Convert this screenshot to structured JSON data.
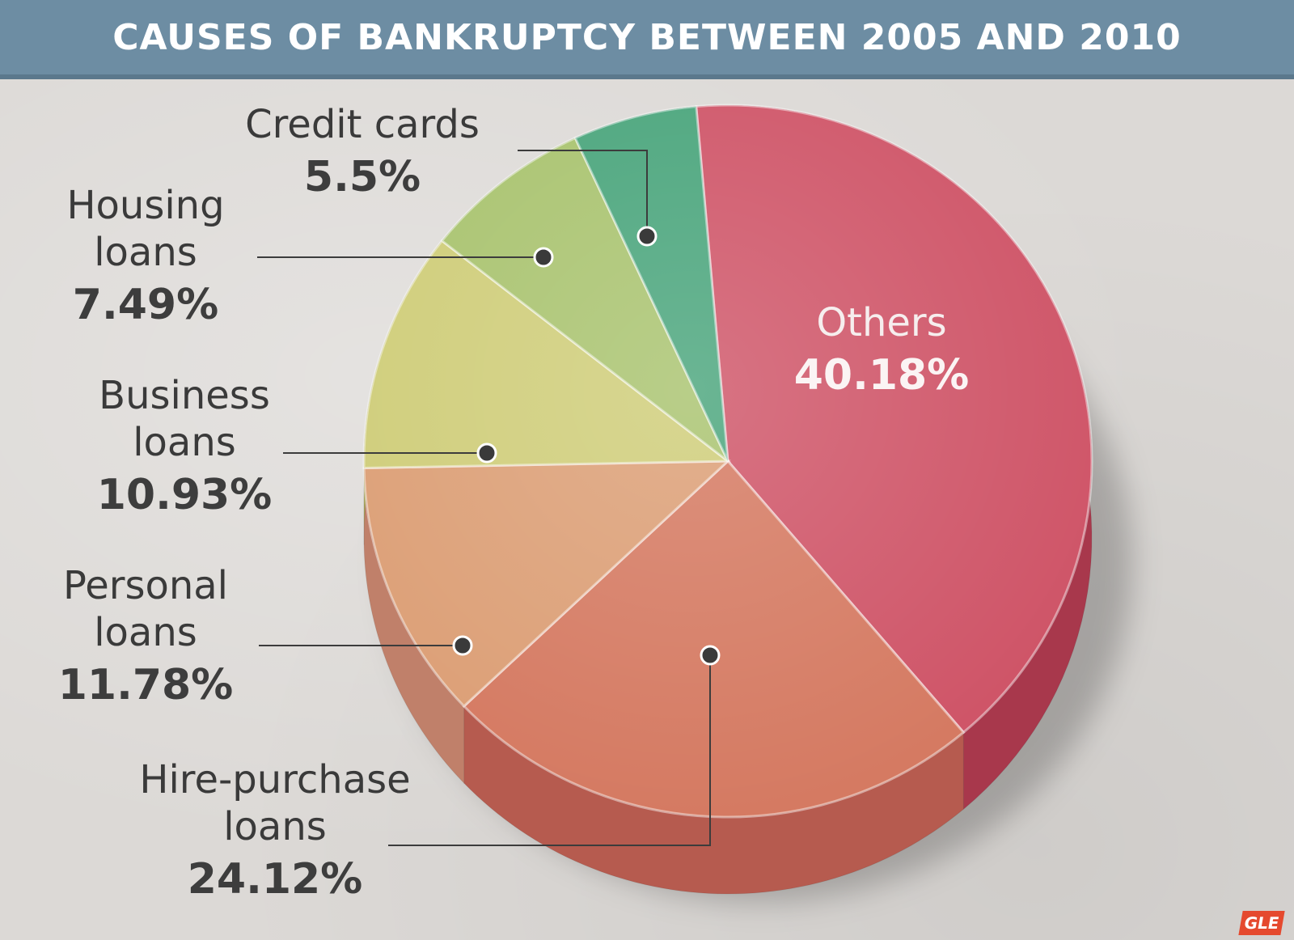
{
  "chart_data": {
    "type": "pie",
    "title": "CAUSES OF BANKRUPTCY BETWEEN 2005 AND 2010",
    "slices": [
      {
        "name_lines": [
          "Others"
        ],
        "value": 40.18,
        "display": "40.18%",
        "color": "#cf5568",
        "side": "#a8384c"
      },
      {
        "name_lines": [
          "Hire-purchase",
          "loans"
        ],
        "value": 24.12,
        "display": "24.12%",
        "color": "#d57a62",
        "side": "#b65b4f"
      },
      {
        "name_lines": [
          "Personal",
          "loans"
        ],
        "value": 11.78,
        "display": "11.78%",
        "color": "#dc9f76",
        "side": "#c0806a"
      },
      {
        "name_lines": [
          "Business",
          "loans"
        ],
        "value": 10.93,
        "display": "10.93%",
        "color": "#cfcd79",
        "side": "#aaa85c"
      },
      {
        "name_lines": [
          "Housing",
          "loans"
        ],
        "value": 7.49,
        "display": "7.49%",
        "color": "#a9c36f",
        "side": "#879e55"
      },
      {
        "name_lines": [
          "Credit cards"
        ],
        "value": 5.5,
        "display": "5.5%",
        "color": "#4aa57c",
        "side": "#378460"
      }
    ]
  },
  "logo": {
    "text": "GLE"
  }
}
